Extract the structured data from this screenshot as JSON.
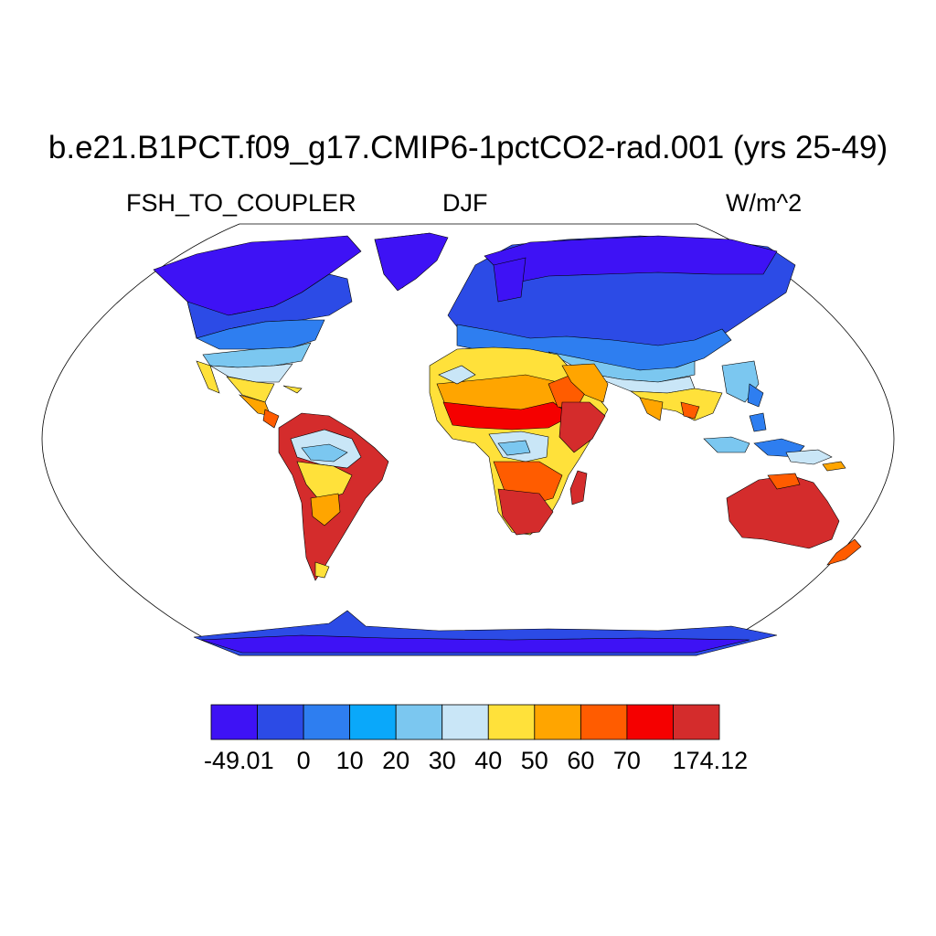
{
  "title": "b.e21.B1PCT.f09_g17.CMIP6-1pctCO2-rad.001 (yrs 25-49)",
  "variable": "FSH_TO_COUPLER",
  "season": "DJF",
  "units": "W/m^2",
  "colorbar": {
    "labels": [
      "-49.01",
      "0",
      "10",
      "20",
      "30",
      "40",
      "50",
      "60",
      "70",
      "174.12"
    ],
    "colors": [
      "#3e12f5",
      "#2c4be6",
      "#2e7ef0",
      "#0aa8fa",
      "#7bc7f0",
      "#c9e6f7",
      "#ffe13a",
      "#ffa500",
      "#ff5c00",
      "#f50000",
      "#d42c2c"
    ]
  },
  "map": {
    "projection": "Robinson",
    "ocean_color": "#ffffff",
    "coastline_color": "#000000"
  }
}
